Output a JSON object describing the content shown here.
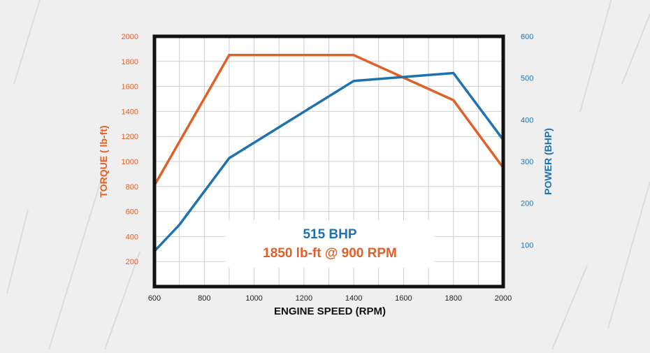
{
  "colors": {
    "torque": "#e0602a",
    "power": "#1f72b0",
    "frame": "#111111",
    "grid": "#cfcfcf",
    "background": "#efefef",
    "streak": "#dcdcdc"
  },
  "chart_data": {
    "type": "line",
    "xlabel": "ENGINE SPEED (RPM)",
    "xlim": [
      600,
      2000
    ],
    "x_ticks": [
      "600",
      "800",
      "1000",
      "1200",
      "1400",
      "1600",
      "1800",
      "2000"
    ],
    "left_axis": {
      "label": "TORQUE ( lb-ft)",
      "lim": [
        0,
        2000
      ],
      "ticks": [
        "200",
        "400",
        "600",
        "800",
        "1000",
        "1200",
        "1400",
        "1600",
        "1800",
        "2000"
      ]
    },
    "right_axis": {
      "label": "POWER (BHP)",
      "lim": [
        0,
        600
      ],
      "ticks": [
        "100",
        "200",
        "300",
        "400",
        "500",
        "600"
      ]
    },
    "grid": true,
    "series": [
      {
        "axis": "left",
        "color": "#e0602a",
        "points": [
          [
            600,
            810
          ],
          [
            900,
            1850
          ],
          [
            1400,
            1850
          ],
          [
            1800,
            1490
          ],
          [
            2000,
            950
          ]
        ]
      },
      {
        "axis": "right",
        "color": "#1f72b0",
        "points": [
          [
            600,
            85
          ],
          [
            700,
            148
          ],
          [
            900,
            308
          ],
          [
            1400,
            493
          ],
          [
            1800,
            512
          ],
          [
            2000,
            352
          ]
        ]
      }
    ],
    "annotations": {
      "power_text": "515 BHP",
      "torque_text": "1850 lb-ft @ 900 RPM"
    }
  }
}
